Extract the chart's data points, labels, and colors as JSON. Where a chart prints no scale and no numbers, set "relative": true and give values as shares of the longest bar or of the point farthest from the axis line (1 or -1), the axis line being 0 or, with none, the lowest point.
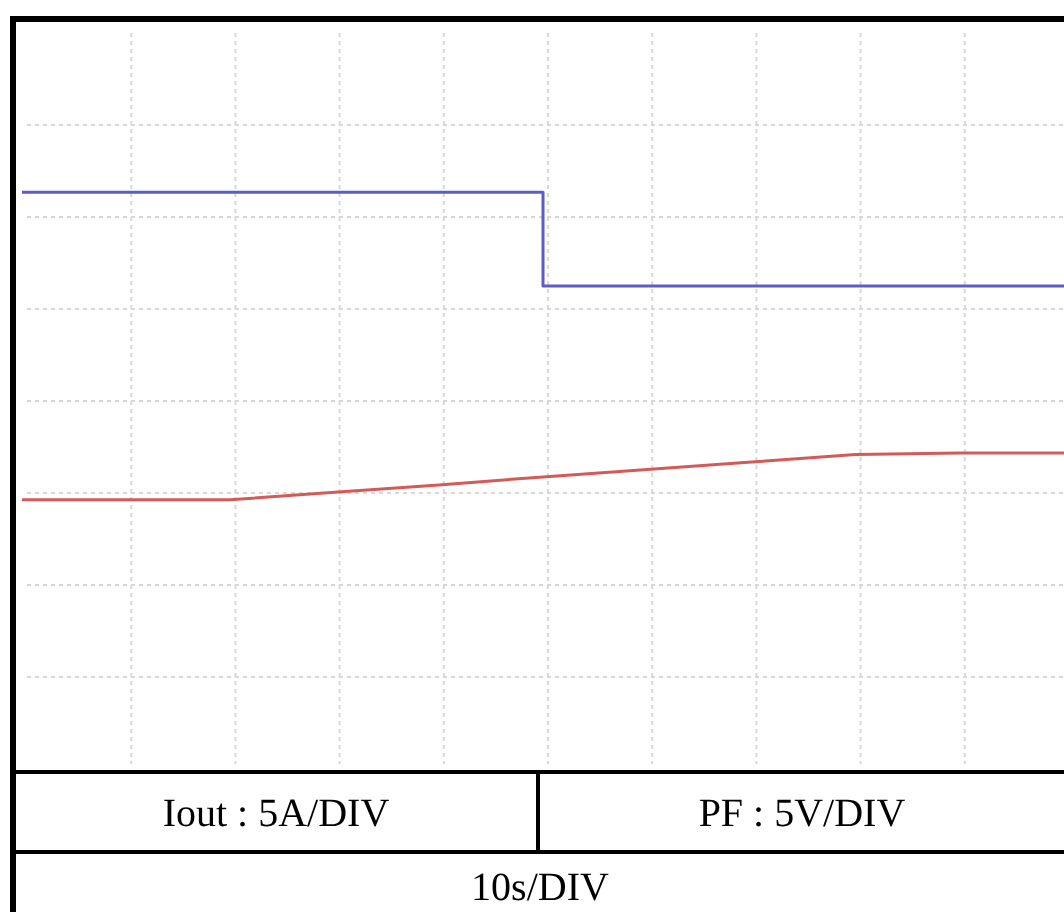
{
  "chart_data": {
    "type": "line",
    "relative": true,
    "grid": true,
    "categories": [
      null,
      null,
      null,
      null,
      null,
      null,
      null,
      null,
      null,
      null,
      null
    ],
    "series": [
      {
        "type": "step",
        "color": "#5c5cc4",
        "values": [
          1,
          1,
          1,
          1,
          1,
          0.836,
          0.836,
          0.836,
          0.836,
          0.836,
          0.836
        ]
      },
      {
        "color": "#d45a5a",
        "values": [
          0.462,
          0.462,
          0.462,
          0.475,
          0.488,
          0.502,
          0.515,
          0.528,
          0.541,
          0.544,
          0.544
        ]
      }
    ],
    "annotations": [
      "Iout : 5A/DIV",
      "PF : 5V/DIV",
      "10s/DIV"
    ]
  }
}
